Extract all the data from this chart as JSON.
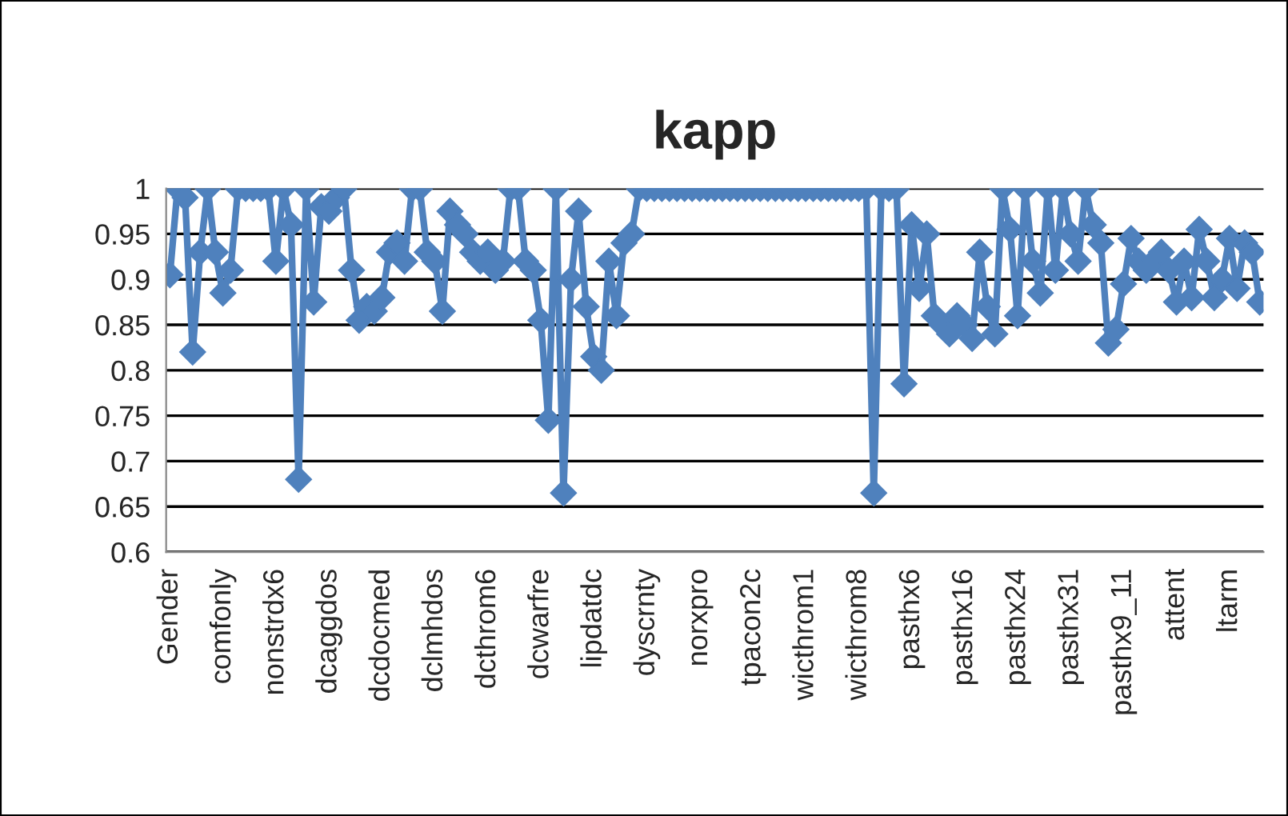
{
  "chart_data": {
    "type": "line",
    "title": "kapp",
    "categories": [
      "Gender",
      null,
      null,
      null,
      null,
      null,
      null,
      "comfonly",
      null,
      null,
      null,
      null,
      null,
      null,
      "nonstrdx6",
      null,
      null,
      null,
      null,
      null,
      null,
      "dcaggdos",
      null,
      null,
      null,
      null,
      null,
      null,
      "dcdocmed",
      null,
      null,
      null,
      null,
      null,
      null,
      "dclmhdos",
      null,
      null,
      null,
      null,
      null,
      null,
      "dcthrom6",
      null,
      null,
      null,
      null,
      null,
      null,
      "dcwarfre",
      null,
      null,
      null,
      null,
      null,
      null,
      "lipdatdc",
      null,
      null,
      null,
      null,
      null,
      null,
      "dyscrnty",
      null,
      null,
      null,
      null,
      null,
      null,
      "norxpro",
      null,
      null,
      null,
      null,
      null,
      null,
      "tpacon2c",
      null,
      null,
      null,
      null,
      null,
      null,
      "wicthrom1",
      null,
      null,
      null,
      null,
      null,
      null,
      "wicthrom8",
      null,
      null,
      null,
      null,
      null,
      null,
      "pasthx6",
      null,
      null,
      null,
      null,
      null,
      null,
      "pasthx16",
      null,
      null,
      null,
      null,
      null,
      null,
      "pasthx24",
      null,
      null,
      null,
      null,
      null,
      null,
      "pasthx31",
      null,
      null,
      null,
      null,
      null,
      null,
      "pasthx9_11",
      null,
      null,
      null,
      null,
      null,
      null,
      "attent",
      null,
      null,
      null,
      null,
      null,
      null,
      "ltarm",
      null,
      null,
      null,
      null
    ],
    "series": [
      {
        "color": "#4f81bd",
        "values": [
          0.905,
          1,
          0.99,
          0.82,
          0.93,
          1,
          0.93,
          0.885,
          0.91,
          1,
          1,
          1,
          1,
          1,
          0.92,
          1,
          0.96,
          0.68,
          1,
          0.875,
          0.98,
          0.975,
          0.99,
          1,
          0.91,
          0.855,
          0.87,
          0.865,
          0.88,
          0.93,
          0.94,
          0.92,
          1,
          1,
          0.93,
          0.92,
          0.865,
          0.975,
          0.96,
          0.95,
          0.93,
          0.92,
          0.93,
          0.91,
          0.92,
          1,
          1,
          0.92,
          0.91,
          0.855,
          0.745,
          1,
          0.665,
          0.9,
          0.975,
          0.87,
          0.815,
          0.8,
          0.92,
          0.86,
          0.94,
          0.95,
          1,
          1,
          1,
          1,
          1,
          1,
          1,
          1,
          1,
          1,
          1,
          1,
          1,
          1,
          1,
          1,
          1,
          1,
          1,
          1,
          1,
          1,
          1,
          1,
          1,
          1,
          1,
          1,
          1,
          1,
          1,
          0.665,
          1,
          1,
          1,
          0.785,
          0.96,
          0.89,
          0.95,
          0.86,
          0.85,
          0.84,
          0.86,
          0.85,
          0.835,
          0.93,
          0.87,
          0.84,
          1,
          0.955,
          0.86,
          1,
          0.92,
          0.885,
          1,
          0.91,
          1,
          0.95,
          0.92,
          1,
          0.96,
          0.94,
          0.83,
          0.845,
          0.895,
          0.945,
          0.92,
          0.91,
          0.92,
          0.93,
          0.91,
          0.875,
          0.92,
          0.88,
          0.955,
          0.92,
          0.88,
          0.9,
          0.945,
          0.89,
          0.94,
          0.93,
          0.875
        ]
      }
    ],
    "ylim": [
      0.6,
      1
    ],
    "yticks": [
      0.6,
      0.65,
      0.7,
      0.75,
      0.8,
      0.85,
      0.9,
      0.95,
      1
    ],
    "grid": "y",
    "legend": false,
    "marker": "diamond",
    "line_style": "solid"
  }
}
